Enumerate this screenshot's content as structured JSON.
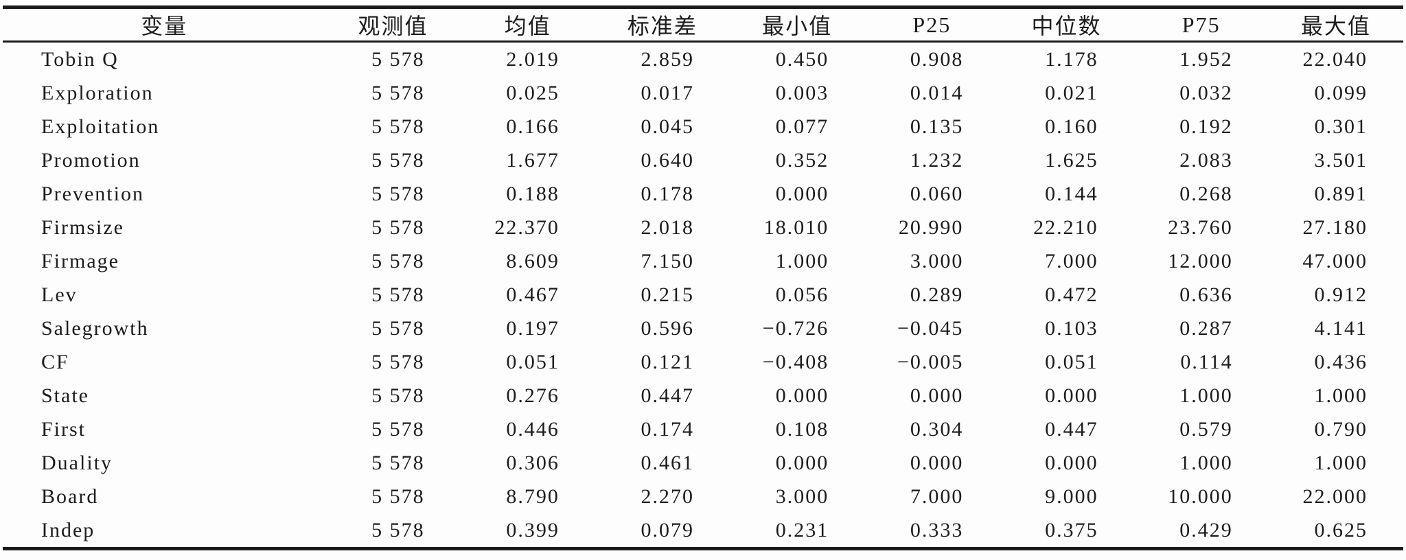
{
  "meta": {
    "description": "Descriptive statistics table from an academic paper (three-line table style)",
    "colors": {
      "rule": "#1b1b1b",
      "text": "#1c1c1c",
      "background": "#fdfdfd"
    }
  },
  "table": {
    "columns": [
      "变量",
      "观测值",
      "均值",
      "标准差",
      "最小值",
      "P25",
      "中位数",
      "P75",
      "最大值"
    ],
    "rows": [
      [
        "Tobin Q",
        "5 578",
        "2.019",
        "2.859",
        "0.450",
        "0.908",
        "1.178",
        "1.952",
        "22.040"
      ],
      [
        "Exploration",
        "5 578",
        "0.025",
        "0.017",
        "0.003",
        "0.014",
        "0.021",
        "0.032",
        "0.099"
      ],
      [
        "Exploitation",
        "5 578",
        "0.166",
        "0.045",
        "0.077",
        "0.135",
        "0.160",
        "0.192",
        "0.301"
      ],
      [
        "Promotion",
        "5 578",
        "1.677",
        "0.640",
        "0.352",
        "1.232",
        "1.625",
        "2.083",
        "3.501"
      ],
      [
        "Prevention",
        "5 578",
        "0.188",
        "0.178",
        "0.000",
        "0.060",
        "0.144",
        "0.268",
        "0.891"
      ],
      [
        "Firmsize",
        "5 578",
        "22.370",
        "2.018",
        "18.010",
        "20.990",
        "22.210",
        "23.760",
        "27.180"
      ],
      [
        "Firmage",
        "5 578",
        "8.609",
        "7.150",
        "1.000",
        "3.000",
        "7.000",
        "12.000",
        "47.000"
      ],
      [
        "Lev",
        "5 578",
        "0.467",
        "0.215",
        "0.056",
        "0.289",
        "0.472",
        "0.636",
        "0.912"
      ],
      [
        "Salegrowth",
        "5 578",
        "0.197",
        "0.596",
        "−0.726",
        "−0.045",
        "0.103",
        "0.287",
        "4.141"
      ],
      [
        "CF",
        "5 578",
        "0.051",
        "0.121",
        "−0.408",
        "−0.005",
        "0.051",
        "0.114",
        "0.436"
      ],
      [
        "State",
        "5 578",
        "0.276",
        "0.447",
        "0.000",
        "0.000",
        "0.000",
        "1.000",
        "1.000"
      ],
      [
        "First",
        "5 578",
        "0.446",
        "0.174",
        "0.108",
        "0.304",
        "0.447",
        "0.579",
        "0.790"
      ],
      [
        "Duality",
        "5 578",
        "0.306",
        "0.461",
        "0.000",
        "0.000",
        "0.000",
        "1.000",
        "1.000"
      ],
      [
        "Board",
        "5 578",
        "8.790",
        "2.270",
        "3.000",
        "7.000",
        "9.000",
        "10.000",
        "22.000"
      ],
      [
        "Indep",
        "5 578",
        "0.399",
        "0.079",
        "0.231",
        "0.333",
        "0.375",
        "0.429",
        "0.625"
      ]
    ]
  },
  "chart_data": {
    "type": "table",
    "title": "",
    "columns": [
      "变量",
      "观测值",
      "均值",
      "标准差",
      "最小值",
      "P25",
      "中位数",
      "P75",
      "最大值"
    ],
    "variables": [
      "Tobin Q",
      "Exploration",
      "Exploitation",
      "Promotion",
      "Prevention",
      "Firmsize",
      "Firmage",
      "Lev",
      "Salegrowth",
      "CF",
      "State",
      "First",
      "Duality",
      "Board",
      "Indep"
    ],
    "observations": 5578,
    "mean": [
      2.019,
      0.025,
      0.166,
      1.677,
      0.188,
      22.37,
      8.609,
      0.467,
      0.197,
      0.051,
      0.276,
      0.446,
      0.306,
      8.79,
      0.399
    ],
    "sd": [
      2.859,
      0.017,
      0.045,
      0.64,
      0.178,
      2.018,
      7.15,
      0.215,
      0.596,
      0.121,
      0.447,
      0.174,
      0.461,
      2.27,
      0.079
    ],
    "min": [
      0.45,
      0.003,
      0.077,
      0.352,
      0.0,
      18.01,
      1.0,
      0.056,
      -0.726,
      -0.408,
      0.0,
      0.108,
      0.0,
      3.0,
      0.231
    ],
    "p25": [
      0.908,
      0.014,
      0.135,
      1.232,
      0.06,
      20.99,
      3.0,
      0.289,
      -0.045,
      -0.005,
      0.0,
      0.304,
      0.0,
      7.0,
      0.333
    ],
    "median": [
      1.178,
      0.021,
      0.16,
      1.625,
      0.144,
      22.21,
      7.0,
      0.472,
      0.103,
      0.051,
      0.0,
      0.447,
      0.0,
      9.0,
      0.375
    ],
    "p75": [
      1.952,
      0.032,
      0.192,
      2.083,
      0.268,
      23.76,
      12.0,
      0.636,
      0.287,
      0.114,
      1.0,
      0.579,
      1.0,
      10.0,
      0.429
    ],
    "max": [
      22.04,
      0.099,
      0.301,
      3.501,
      0.891,
      27.18,
      47.0,
      0.912,
      4.141,
      0.436,
      1.0,
      0.79,
      1.0,
      22.0,
      0.625
    ]
  }
}
